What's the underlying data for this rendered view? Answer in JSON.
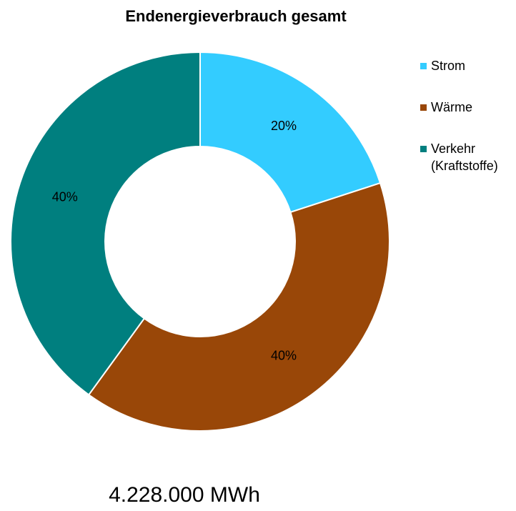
{
  "chart_data": {
    "type": "donut",
    "title": "Endenergieverbrauch gesamt",
    "categories": [
      "Strom",
      "Wärme",
      "Verkehr (Kraftstoffe)"
    ],
    "values": [
      20,
      40,
      40
    ],
    "value_labels": [
      "20%",
      "40%",
      "40%"
    ],
    "colors": [
      "#33ccff",
      "#994708",
      "#007f7f"
    ],
    "annotation": "4.228.000 MWh",
    "legend": "right"
  }
}
